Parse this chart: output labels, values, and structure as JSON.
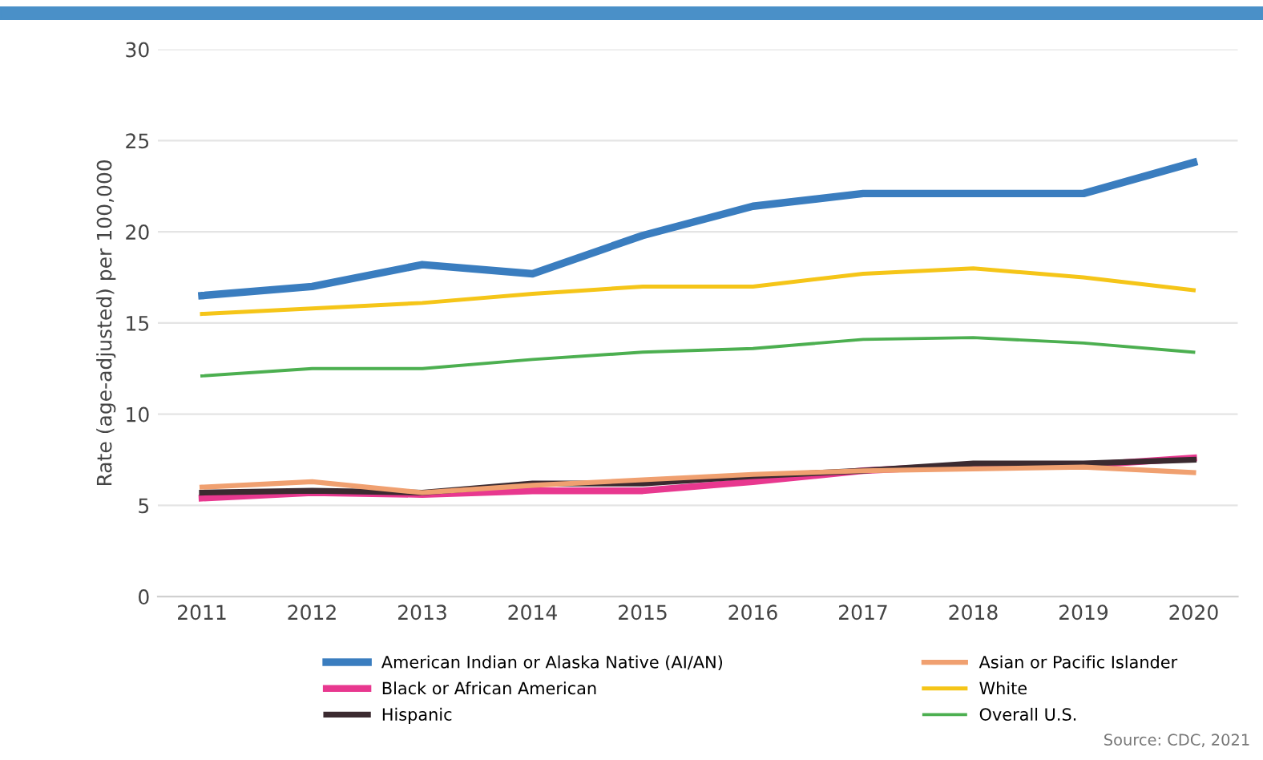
{
  "chart_data": {
    "type": "line",
    "ylabel": "Rate (age-adjusted) per 100,000",
    "categories": [
      "2011",
      "2012",
      "2013",
      "2014",
      "2015",
      "2016",
      "2017",
      "2018",
      "2019",
      "2020"
    ],
    "series": [
      {
        "name": "American Indian or Alaska Native (AI/AN)",
        "color": "#3a7dbf",
        "values": [
          16.5,
          17.0,
          18.2,
          17.7,
          19.8,
          21.4,
          22.1,
          22.1,
          22.1,
          23.8
        ]
      },
      {
        "name": "Black or African American",
        "color": "#e8388f",
        "values": [
          5.4,
          5.7,
          5.6,
          5.8,
          5.8,
          6.3,
          6.9,
          7.2,
          7.2,
          7.6
        ]
      },
      {
        "name": "Hispanic",
        "color": "#3b2a30",
        "values": [
          5.7,
          5.8,
          5.7,
          6.2,
          6.2,
          6.6,
          6.9,
          7.3,
          7.3,
          7.5
        ]
      },
      {
        "name": "Asian or Pacific Islander",
        "color": "#f0a070",
        "values": [
          6.0,
          6.3,
          5.7,
          6.1,
          6.4,
          6.7,
          6.9,
          7.0,
          7.1,
          6.8
        ]
      },
      {
        "name": "White",
        "color": "#f5c518",
        "values": [
          15.5,
          15.8,
          16.1,
          16.6,
          17.0,
          17.0,
          17.7,
          18.0,
          17.5,
          16.8
        ]
      },
      {
        "name": "Overall U.S.",
        "color": "#4caf50",
        "values": [
          12.1,
          12.5,
          12.5,
          13.0,
          13.4,
          13.6,
          14.1,
          14.2,
          13.9,
          13.4
        ]
      }
    ],
    "ylim": [
      0,
      30
    ],
    "yticks": [
      0,
      5,
      10,
      15,
      20,
      25,
      30
    ],
    "grid": "y",
    "legend": "bottom",
    "annotations": [
      "Source: CDC, 2021"
    ]
  }
}
